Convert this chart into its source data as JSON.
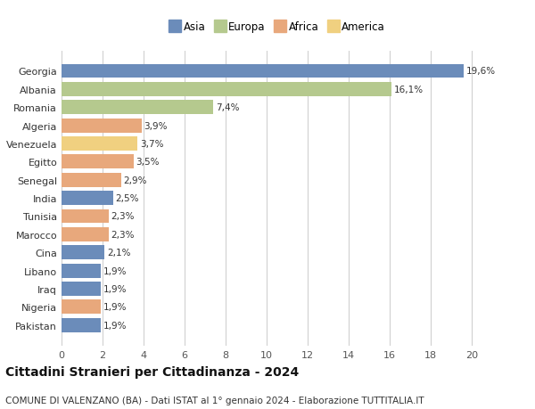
{
  "categories": [
    "Georgia",
    "Albania",
    "Romania",
    "Algeria",
    "Venezuela",
    "Egitto",
    "Senegal",
    "India",
    "Tunisia",
    "Marocco",
    "Cina",
    "Libano",
    "Iraq",
    "Nigeria",
    "Pakistan"
  ],
  "values": [
    19.6,
    16.1,
    7.4,
    3.9,
    3.7,
    3.5,
    2.9,
    2.5,
    2.3,
    2.3,
    2.1,
    1.9,
    1.9,
    1.9,
    1.9
  ],
  "labels": [
    "19,6%",
    "16,1%",
    "7,4%",
    "3,9%",
    "3,7%",
    "3,5%",
    "2,9%",
    "2,5%",
    "2,3%",
    "2,3%",
    "2,1%",
    "1,9%",
    "1,9%",
    "1,9%",
    "1,9%"
  ],
  "colors": [
    "#6b8cba",
    "#b5c98e",
    "#b5c98e",
    "#e8a87c",
    "#f0d080",
    "#e8a87c",
    "#e8a87c",
    "#6b8cba",
    "#e8a87c",
    "#e8a87c",
    "#6b8cba",
    "#6b8cba",
    "#6b8cba",
    "#e8a87c",
    "#6b8cba"
  ],
  "legend_labels": [
    "Asia",
    "Europa",
    "Africa",
    "America"
  ],
  "legend_colors": [
    "#6b8cba",
    "#b5c98e",
    "#e8a87c",
    "#f0d080"
  ],
  "xlim": [
    0,
    21
  ],
  "xticks": [
    0,
    2,
    4,
    6,
    8,
    10,
    12,
    14,
    16,
    18,
    20
  ],
  "title": "Cittadini Stranieri per Cittadinanza - 2024",
  "subtitle": "COMUNE DI VALENZANO (BA) - Dati ISTAT al 1° gennaio 2024 - Elaborazione TUTTITALIA.IT",
  "title_fontsize": 10,
  "subtitle_fontsize": 7.5,
  "background_color": "#ffffff",
  "grid_color": "#cccccc"
}
